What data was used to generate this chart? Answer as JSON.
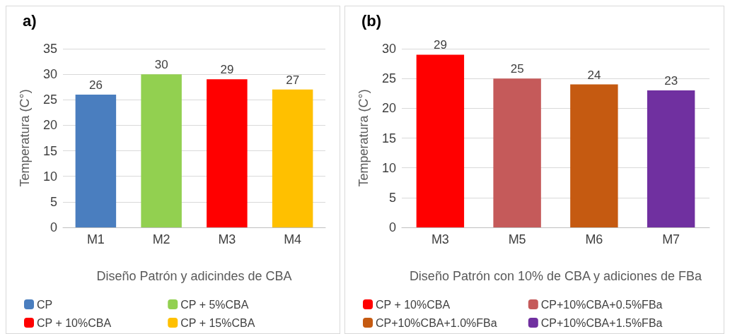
{
  "chart_data": [
    {
      "type": "bar",
      "title": "a)",
      "xlabel": "Diseño Patrón y adicindes de CBA",
      "ylabel": "Temperatura (C°)",
      "categories": [
        "M1",
        "M2",
        "M3",
        "M4"
      ],
      "series": [
        {
          "name": "CP",
          "color": "#4a7ebf",
          "values": [
            26,
            null,
            null,
            null
          ]
        },
        {
          "name": "CP + 5%CBA",
          "color": "#92d050",
          "values": [
            null,
            30,
            null,
            null
          ]
        },
        {
          "name": "CP + 10%CBA",
          "color": "#ff0000",
          "values": [
            null,
            null,
            29,
            null
          ]
        },
        {
          "name": "CP + 15%CBA",
          "color": "#ffc000",
          "values": [
            null,
            null,
            null,
            27
          ]
        }
      ],
      "ylim": [
        0,
        35
      ],
      "yticks": [
        0,
        5,
        10,
        15,
        20,
        25,
        30,
        35
      ],
      "grid": "y",
      "legend": "bottom",
      "data_labels": true
    },
    {
      "type": "bar",
      "title": "(b)",
      "xlabel": "Diseño Patrón con 10% de CBA y adiciones de FBa",
      "ylabel": "Temperatura (C°)",
      "categories": [
        "M3",
        "M5",
        "M6",
        "M7"
      ],
      "series": [
        {
          "name": "CP + 10%CBA",
          "color": "#ff0000",
          "values": [
            29,
            null,
            null,
            null
          ]
        },
        {
          "name": "CP+10%CBA+0.5%FBa",
          "color": "#c55a5a",
          "values": [
            null,
            25,
            null,
            null
          ]
        },
        {
          "name": "CP+10%CBA+1.0%FBa",
          "color": "#c55a11",
          "values": [
            null,
            null,
            24,
            null
          ]
        },
        {
          "name": "CP+10%CBA+1.5%FBa",
          "color": "#7030a0",
          "values": [
            null,
            null,
            null,
            23
          ]
        }
      ],
      "ylim": [
        0,
        30
      ],
      "yticks": [
        0,
        5,
        10,
        15,
        20,
        25,
        30
      ],
      "grid": "y",
      "legend": "bottom",
      "data_labels": true
    }
  ]
}
